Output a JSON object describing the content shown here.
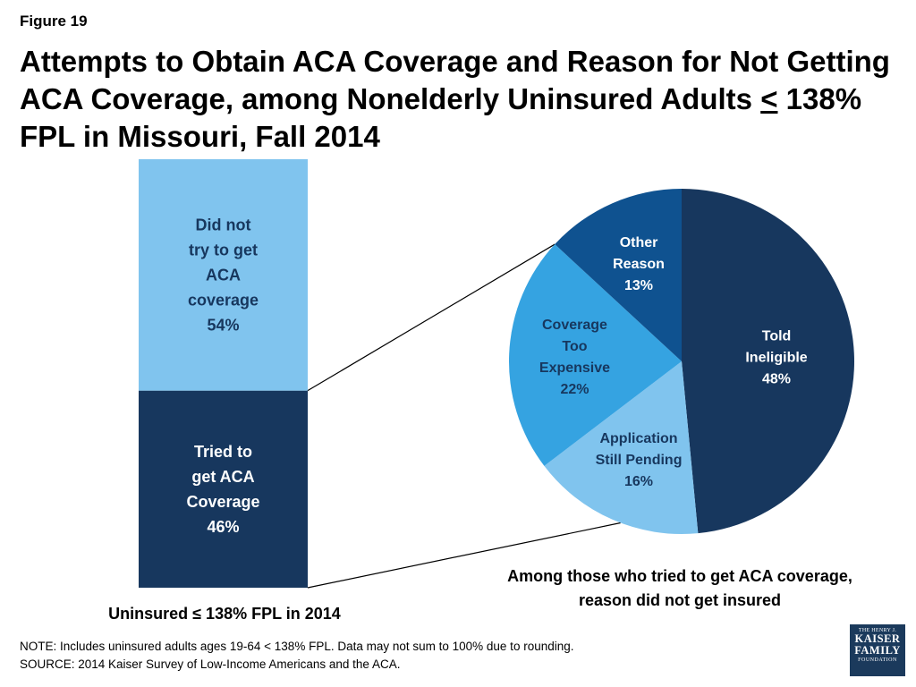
{
  "figure_label": "Figure 19",
  "title": {
    "part1": "Attempts to Obtain ACA Coverage and Reason for Not Getting ACA Coverage, among Nonelderly Uninsured Adults ",
    "underlined": "<",
    "part2": " 138% FPL in Missouri, Fall 2014"
  },
  "colors": {
    "dark_navy": "#17375e",
    "medium_blue": "#0f5290",
    "bright_blue": "#35a3e1",
    "light_blue": "#80c4ee",
    "white": "#ffffff"
  },
  "chart_data": [
    {
      "type": "bar",
      "stacked": true,
      "categories": [
        "Uninsured ≤ 138% FPL in 2014"
      ],
      "series": [
        {
          "label_lines": [
            "Tried to",
            "get ACA",
            "Coverage",
            "46%"
          ],
          "values": [
            46
          ],
          "color": "#17375e",
          "text_color": "#ffffff"
        },
        {
          "label_lines": [
            "Did not",
            "try to get",
            "ACA",
            "coverage",
            "54%"
          ],
          "values": [
            54
          ],
          "color": "#80c4ee",
          "text_color": "#17375e"
        }
      ],
      "xlabel": "Uninsured ≤ 138% FPL in 2014",
      "ylim": [
        0,
        100
      ]
    },
    {
      "type": "pie",
      "start_angle_deg": 0,
      "direction": "clockwise",
      "slices": [
        {
          "label_lines": [
            "Told",
            "Ineligible",
            "48%"
          ],
          "value": 48,
          "color": "#17375e",
          "text_color": "#ffffff"
        },
        {
          "label_lines": [
            "Application",
            "Still Pending",
            "16%"
          ],
          "value": 16,
          "color": "#80c4ee",
          "text_color": "#17375e"
        },
        {
          "label_lines": [
            "Coverage",
            "Too",
            "Expensive",
            "22%"
          ],
          "value": 22,
          "color": "#35a3e1",
          "text_color": "#17375e"
        },
        {
          "label_lines": [
            "Other",
            "Reason",
            "13%"
          ],
          "value": 13,
          "color": "#0f5290",
          "text_color": "#ffffff"
        }
      ],
      "caption": "Among those who tried to get ACA coverage, reason did not get insured"
    }
  ],
  "note_line": "NOTE: Includes uninsured adults ages 19-64 < 138% FPL.  Data may not sum to 100% due to rounding.",
  "source_line": "SOURCE: 2014 Kaiser Survey of Low-Income Americans and the ACA.",
  "logo": {
    "line1": "THE HENRY J.",
    "line2": "KAISER",
    "line3": "FAMILY",
    "line4": "FOUNDATION"
  }
}
